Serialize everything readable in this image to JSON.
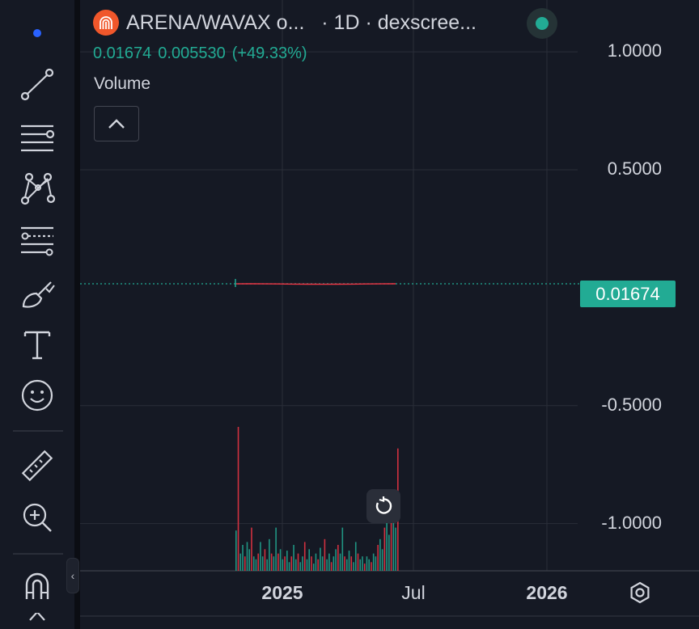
{
  "toolbar": {
    "tools": [
      {
        "name": "trend-line-icon",
        "label": "Trend line"
      },
      {
        "name": "horizontal-lines-icon",
        "label": "Lines"
      },
      {
        "name": "pattern-icon",
        "label": "Patterns"
      },
      {
        "name": "fib-icon",
        "label": "Fibonacci"
      },
      {
        "name": "brush-icon",
        "label": "Brush"
      },
      {
        "name": "text-icon",
        "label": "Text"
      },
      {
        "name": "emoji-icon",
        "label": "Icons"
      },
      {
        "name": "ruler-icon",
        "label": "Measure"
      },
      {
        "name": "zoom-in-icon",
        "label": "Zoom in"
      },
      {
        "name": "magnet-icon",
        "label": "Magnet"
      }
    ],
    "collapse_glyph": "‹"
  },
  "legend": {
    "symbol": "ARENA/WAVAX o...",
    "interval_source": "· 1D · dexscree...",
    "last": "0.01674",
    "change": "0.005530",
    "change_pct": "(+49.33%)",
    "volume_label": "Volume",
    "logo_color": "#f0572b"
  },
  "colors": {
    "background": "#151924",
    "grid": "#2a2e39",
    "up": "#22ab94",
    "down": "#f23645",
    "last_price_tag": "#22ab94"
  },
  "chart_data": {
    "type": "bar",
    "title": "ARENA/WAVAX",
    "interval": "1D",
    "y_ticks": [
      "1.0000",
      "0.5000",
      "-0.5000",
      "-1.0000"
    ],
    "y_tick_values": [
      1.0,
      0.5,
      -0.5,
      -1.0
    ],
    "ylim": [
      -1.2,
      1.22
    ],
    "last_price": 0.01674,
    "last_price_label": "0.01674",
    "x_ticks": [
      {
        "label": "2025",
        "bold": true
      },
      {
        "label": "Jul",
        "bold": false
      },
      {
        "label": "2026",
        "bold": true
      }
    ],
    "grid": true,
    "price_series": {
      "name": "",
      "close": [
        0.016,
        0.017,
        0.016,
        0.015,
        0.014,
        0.013,
        0.012,
        0.013,
        0.014,
        0.015,
        0.016,
        0.01674
      ]
    },
    "volume_series": {
      "name": "Volume",
      "relative_values": [
        0.28,
        1.0,
        0.12,
        0.18,
        0.1,
        0.2,
        0.15,
        0.3,
        0.1,
        0.08,
        0.12,
        0.2,
        0.1,
        0.15,
        0.08,
        0.22,
        0.12,
        0.1,
        0.3,
        0.12,
        0.15,
        0.08,
        0.1,
        0.14,
        0.06,
        0.1,
        0.18,
        0.08,
        0.12,
        0.06,
        0.1,
        0.2,
        0.08,
        0.15,
        0.1,
        0.05,
        0.12,
        0.08,
        0.16,
        0.1,
        0.22,
        0.08,
        0.12,
        0.06,
        0.1,
        0.15,
        0.18,
        0.12,
        0.3,
        0.1,
        0.08,
        0.14,
        0.1,
        0.06,
        0.2,
        0.12,
        0.08,
        0.1,
        0.05,
        0.1,
        0.08,
        0.06,
        0.12,
        0.1,
        0.18,
        0.22,
        0.15,
        0.3,
        0.35,
        0.25,
        0.45,
        0.4,
        0.3,
        0.85
      ]
    }
  }
}
